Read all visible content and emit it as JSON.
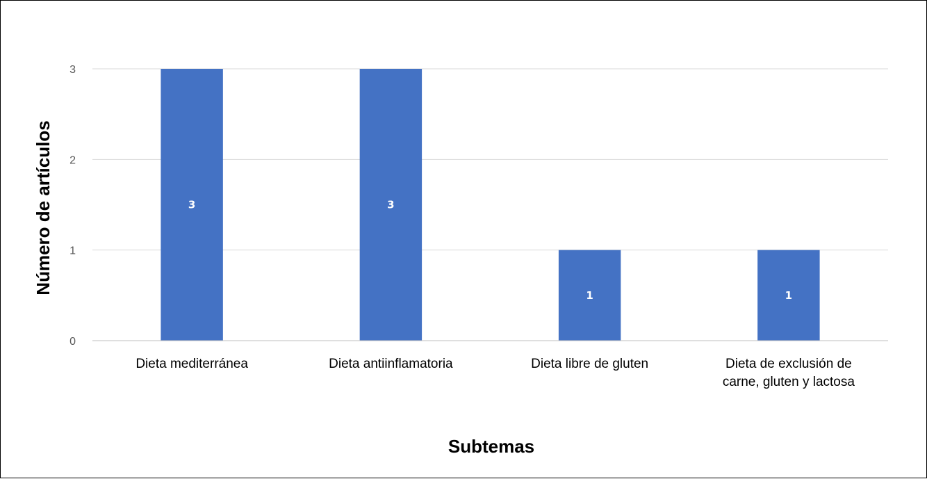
{
  "chart_data": {
    "type": "bar",
    "title": "",
    "xlabel": "Subtemas",
    "ylabel": "Número de artículos",
    "categories": [
      "Dieta mediterránea",
      "Dieta antiinflamatoria",
      "Dieta libre de gluten",
      "Dieta de exclusión de carne, gluten y lactosa"
    ],
    "category_lines": [
      [
        "Dieta mediterránea"
      ],
      [
        "Dieta antiinflamatoria"
      ],
      [
        "Dieta libre de gluten"
      ],
      [
        "Dieta de exclusión de",
        "carne, gluten y lactosa"
      ]
    ],
    "values": [
      3,
      3,
      1,
      1
    ],
    "data_labels": [
      "3",
      "3",
      "1",
      "1"
    ],
    "ylim": [
      0,
      3
    ],
    "yticks": [
      0,
      1,
      2,
      3
    ],
    "ytick_labels": [
      "0",
      "1",
      "2",
      "3"
    ],
    "grid": true,
    "legend": "none",
    "bar_color": "#4472C4",
    "grid_color": "#D9D9D9",
    "axis_line_color": "#BFBFBF",
    "tick_label_color": "#595959"
  }
}
